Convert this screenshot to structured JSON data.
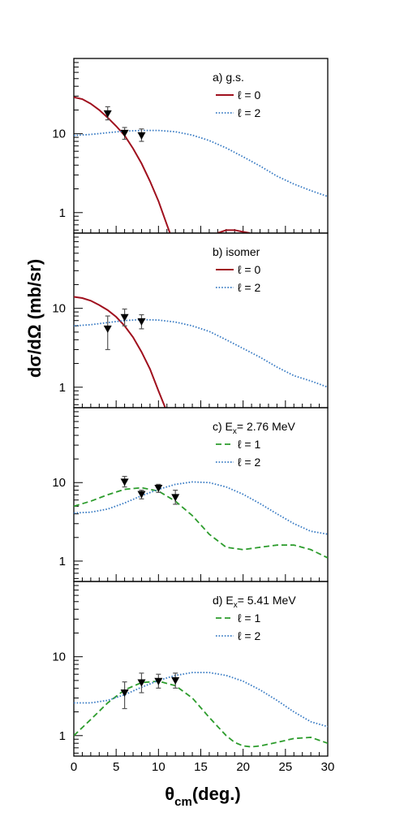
{
  "figure": {
    "ylabel": "dσ/dΩ (mb/sr)",
    "xlabel_main": "θ",
    "xlabel_sub": "cm",
    "xlabel_rest": "(deg.)"
  },
  "chart_data": [
    {
      "type": "line",
      "panel_label": "a) g.s.",
      "xlim": [
        0,
        30
      ],
      "ylim": [
        0.55,
        90
      ],
      "yscale": "log",
      "x_ticks": [
        0,
        5,
        10,
        15,
        20,
        25,
        30
      ],
      "y_ticks": [
        {
          "value": 1,
          "label": "1"
        },
        {
          "value": 10,
          "label": "10"
        }
      ],
      "legend_position": "top-right",
      "series": [
        {
          "name": "ℓ = 0",
          "color": "#a0101e",
          "dash": "solid",
          "x": [
            0,
            1,
            2,
            3,
            4,
            5,
            6,
            7,
            8,
            9,
            10,
            11,
            11.5
          ],
          "y": [
            29,
            27.5,
            24,
            20,
            16,
            12.5,
            9.5,
            6.5,
            4.2,
            2.5,
            1.4,
            0.7,
            0.5
          ]
        },
        {
          "name": "",
          "color": "#a0101e",
          "dash": "solid",
          "x": [
            17,
            18,
            19,
            20,
            20.8
          ],
          "y": [
            0.55,
            0.6,
            0.6,
            0.57,
            0.55
          ]
        },
        {
          "name": "ℓ = 2",
          "color": "#3a7cc4",
          "dash": "dotted",
          "x": [
            0,
            2,
            4,
            6,
            8,
            10,
            12,
            14,
            16,
            18,
            20,
            22,
            24,
            26,
            28,
            30
          ],
          "y": [
            9.5,
            9.8,
            10.3,
            10.8,
            11.0,
            11.0,
            10.6,
            9.6,
            8.2,
            6.6,
            5.1,
            3.9,
            2.9,
            2.3,
            1.9,
            1.6
          ]
        }
      ],
      "points": [
        {
          "x": 4,
          "y": 18,
          "err": [
            15,
            22
          ]
        },
        {
          "x": 6,
          "y": 10.2,
          "err": [
            8.5,
            12
          ]
        },
        {
          "x": 8,
          "y": 9.5,
          "err": [
            8,
            11.5
          ]
        }
      ]
    },
    {
      "type": "line",
      "panel_label": "b) isomer",
      "xlim": [
        0,
        30
      ],
      "ylim": [
        0.55,
        90
      ],
      "yscale": "log",
      "x_ticks": [
        0,
        5,
        10,
        15,
        20,
        25,
        30
      ],
      "y_ticks": [
        {
          "value": 1,
          "label": "1"
        },
        {
          "value": 10,
          "label": "10"
        }
      ],
      "legend_position": "top-right",
      "series": [
        {
          "name": "ℓ = 0",
          "color": "#a0101e",
          "dash": "solid",
          "x": [
            0,
            1,
            2,
            3,
            4,
            5,
            6,
            7,
            8,
            9,
            10,
            10.8
          ],
          "y": [
            14,
            13.5,
            12.5,
            11,
            9.5,
            7.8,
            6,
            4.3,
            2.8,
            1.7,
            0.9,
            0.55
          ]
        },
        {
          "name": "ℓ = 2",
          "color": "#3a7cc4",
          "dash": "dotted",
          "x": [
            0,
            2,
            4,
            6,
            8,
            10,
            12,
            14,
            16,
            18,
            20,
            22,
            24,
            26,
            28,
            30
          ],
          "y": [
            6.0,
            6.2,
            6.6,
            7.0,
            7.2,
            7.1,
            6.7,
            6.0,
            5.1,
            4.0,
            3.1,
            2.4,
            1.8,
            1.4,
            1.2,
            1.0
          ]
        }
      ],
      "points": [
        {
          "x": 4,
          "y": 5.5,
          "err": [
            3,
            8
          ]
        },
        {
          "x": 6,
          "y": 7.7,
          "err": [
            6,
            9.8
          ]
        },
        {
          "x": 8,
          "y": 6.8,
          "err": [
            5.5,
            8.3
          ]
        }
      ]
    },
    {
      "type": "line",
      "panel_label_prefix": "c) E",
      "panel_label_sub": "x",
      "panel_label_suffix": "= 2.76 MeV",
      "xlim": [
        0,
        30
      ],
      "ylim": [
        0.55,
        90
      ],
      "yscale": "log",
      "x_ticks": [
        0,
        5,
        10,
        15,
        20,
        25,
        30
      ],
      "y_ticks": [
        {
          "value": 1,
          "label": "1"
        },
        {
          "value": 10,
          "label": "10"
        }
      ],
      "legend_position": "top-right",
      "series": [
        {
          "name": "ℓ = 1",
          "color": "#2c9c2c",
          "dash": "dashed",
          "x": [
            0,
            2,
            4,
            6,
            8,
            10,
            12,
            14,
            16,
            18,
            20,
            22,
            24,
            26,
            28,
            30
          ],
          "y": [
            5.0,
            5.8,
            7.0,
            8.2,
            8.6,
            7.8,
            5.8,
            3.8,
            2.2,
            1.5,
            1.4,
            1.5,
            1.6,
            1.6,
            1.4,
            1.1
          ]
        },
        {
          "name": "ℓ = 2",
          "color": "#3a7cc4",
          "dash": "dotted",
          "x": [
            0,
            2,
            4,
            6,
            8,
            10,
            12,
            14,
            16,
            18,
            20,
            22,
            24,
            26,
            28,
            30
          ],
          "y": [
            4.1,
            4.2,
            4.6,
            5.5,
            6.8,
            8.2,
            9.5,
            10.2,
            10.0,
            8.8,
            7.1,
            5.4,
            4.0,
            3.0,
            2.4,
            2.2
          ]
        }
      ],
      "points": [
        {
          "x": 6,
          "y": 10.2,
          "err": [
            8.8,
            12
          ]
        },
        {
          "x": 8,
          "y": 7.1,
          "err": [
            6.2,
            8.0
          ]
        },
        {
          "x": 10,
          "y": 8.5,
          "err": [
            7.5,
            9.5
          ]
        },
        {
          "x": 12,
          "y": 6.5,
          "err": [
            5.3,
            8.0
          ]
        }
      ]
    },
    {
      "type": "line",
      "panel_label_prefix": "d) E",
      "panel_label_sub": "x",
      "panel_label_suffix": "= 5.41 MeV",
      "xlim": [
        0,
        30
      ],
      "ylim": [
        0.55,
        90
      ],
      "yscale": "log",
      "x_ticks": [
        0,
        5,
        10,
        15,
        20,
        25,
        30
      ],
      "y_ticks": [
        {
          "value": 1,
          "label": "1"
        },
        {
          "value": 10,
          "label": "10"
        }
      ],
      "legend_position": "top-right",
      "series": [
        {
          "name": "ℓ = 1",
          "color": "#2c9c2c",
          "dash": "dashed",
          "x": [
            0,
            2,
            4,
            6,
            8,
            10,
            12,
            14,
            16,
            18,
            19,
            20,
            21,
            22,
            24,
            26,
            28,
            30
          ],
          "y": [
            1.0,
            1.6,
            2.6,
            3.8,
            4.7,
            4.9,
            4.3,
            3.0,
            1.7,
            1.0,
            0.82,
            0.74,
            0.72,
            0.74,
            0.82,
            0.92,
            0.95,
            0.8
          ]
        },
        {
          "name": "ℓ = 2",
          "color": "#3a7cc4",
          "dash": "dotted",
          "x": [
            0,
            2,
            4,
            6,
            8,
            10,
            12,
            14,
            16,
            18,
            20,
            22,
            24,
            26,
            28,
            30
          ],
          "y": [
            2.6,
            2.6,
            2.8,
            3.3,
            4.1,
            5.0,
            5.8,
            6.3,
            6.3,
            5.8,
            4.9,
            3.8,
            2.8,
            2.0,
            1.5,
            1.3
          ]
        }
      ],
      "points": [
        {
          "x": 6,
          "y": 3.5,
          "err": [
            2.2,
            4.8
          ]
        },
        {
          "x": 8,
          "y": 4.7,
          "err": [
            3.5,
            6.2
          ]
        },
        {
          "x": 10,
          "y": 4.9,
          "err": [
            4.0,
            6.0
          ]
        },
        {
          "x": 12,
          "y": 5.0,
          "err": [
            4.0,
            6.2
          ]
        }
      ]
    }
  ]
}
